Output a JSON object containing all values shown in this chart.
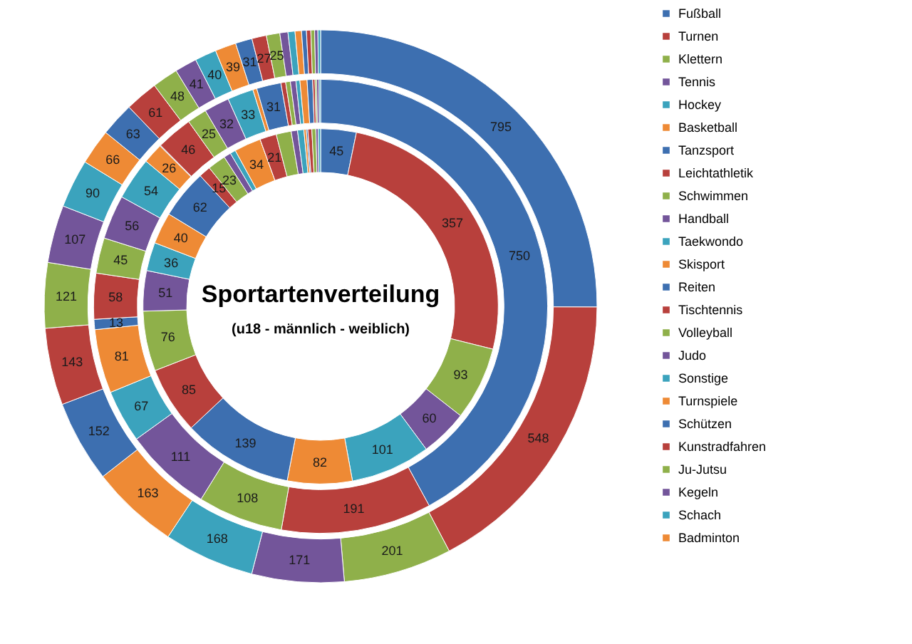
{
  "chart_data": {
    "type": "donut",
    "title": "Sportartenverteilung",
    "subtitle": "(u18 - männlich - weiblich)",
    "categories": [
      "Fußball",
      "Turnen",
      "Klettern",
      "Tennis",
      "Hockey",
      "Basketball",
      "Tanzsport",
      "Leichtathletik",
      "Schwimmen",
      "Handball",
      "Taekwondo",
      "Skisport",
      "Reiten",
      "Tischtennis",
      "Volleyball",
      "Judo",
      "Sonstige",
      "Turnspiele",
      "Schützen",
      "Kunstradfahren",
      "Ju-Jutsu",
      "Kegeln",
      "Schach",
      "Badminton",
      null,
      null,
      null,
      null,
      null
    ],
    "colors": [
      "#3d6fb0",
      "#b8403c",
      "#8fb04a",
      "#73559a",
      "#3ba3bd",
      "#ee8a35",
      "#3d6fb0",
      "#b8403c",
      "#8fb04a",
      "#73559a",
      "#3ba3bd",
      "#ee8a35",
      "#3d6fb0",
      "#b8403c",
      "#8fb04a",
      "#73559a",
      "#3ba3bd",
      "#ee8a35",
      "#3d6fb0",
      "#b8403c",
      "#8fb04a",
      "#73559a",
      "#3ba3bd",
      "#ee8a35",
      "#3d6fb0",
      "#b8403c",
      "#8fb04a",
      "#73559a",
      "#3ba3bd"
    ],
    "series": [
      {
        "values": [
          45,
          357,
          93,
          60,
          101,
          82,
          139,
          85,
          76,
          51,
          36,
          40,
          62,
          15,
          23,
          9,
          7,
          34,
          0,
          21,
          19,
          8,
          8,
          3,
          2,
          5,
          5,
          3,
          3
        ],
        "value_labels": [
          "45",
          "357",
          "93",
          "60",
          "101",
          "82",
          "139",
          "85",
          "76",
          "51",
          "36",
          "40",
          "62",
          "15",
          "23",
          null,
          null,
          "34",
          null,
          "21",
          null,
          null,
          null,
          null,
          null,
          null,
          null,
          null,
          null
        ]
      },
      {
        "values": [
          750,
          191,
          108,
          111,
          67,
          81,
          13,
          58,
          45,
          56,
          54,
          26,
          1,
          46,
          25,
          32,
          33,
          5,
          31,
          6,
          6,
          7,
          5,
          9,
          7,
          3,
          2,
          3,
          2
        ],
        "value_labels": [
          "750",
          "191",
          "108",
          "111",
          "67",
          "81",
          "13",
          "58",
          "45",
          "56",
          "54",
          "26",
          null,
          "46",
          "25",
          "32",
          "33",
          null,
          "31",
          null,
          null,
          null,
          null,
          null,
          null,
          null,
          null,
          null,
          null
        ]
      },
      {
        "values": [
          795,
          548,
          201,
          171,
          168,
          163,
          152,
          143,
          121,
          107,
          90,
          66,
          63,
          61,
          48,
          41,
          40,
          39,
          31,
          27,
          25,
          15,
          13,
          12,
          9,
          8,
          7,
          6,
          5
        ],
        "value_labels": [
          "795",
          "548",
          "201",
          "171",
          "168",
          "163",
          "152",
          "143",
          "121",
          "107",
          "90",
          "66",
          "63",
          "61",
          "48",
          "41",
          "40",
          "39",
          "31",
          "27",
          "25",
          null,
          null,
          null,
          null,
          null,
          null,
          null,
          null
        ]
      }
    ],
    "legend": "right"
  }
}
